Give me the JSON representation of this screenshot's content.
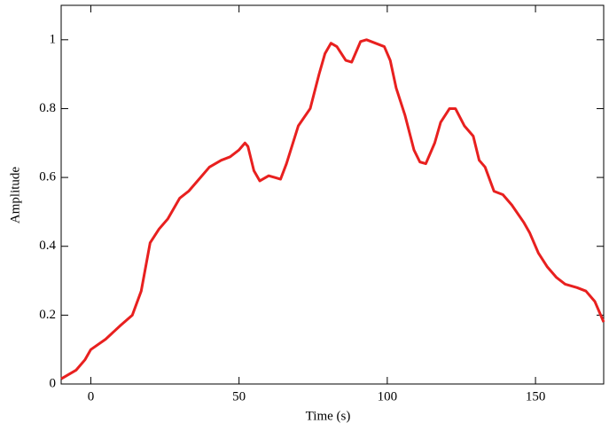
{
  "chart_data": {
    "type": "line",
    "xlabel": "Time (s)",
    "ylabel": "Amplitude",
    "xlim": [
      -10,
      173
    ],
    "ylim": [
      0,
      1.1
    ],
    "xticks": [
      0,
      50,
      100,
      150
    ],
    "yticks": [
      0,
      0.2,
      0.4,
      0.6,
      0.8,
      1
    ],
    "grid": false,
    "series": [
      {
        "color": "#e8201f",
        "x": [
          -10,
          -5,
          -2,
          0,
          5,
          10,
          14,
          17,
          20,
          23,
          26,
          30,
          33,
          37,
          40,
          44,
          47,
          50,
          52,
          53,
          55,
          57,
          60,
          62,
          64,
          66,
          70,
          74,
          77,
          79,
          81,
          83,
          86,
          88,
          91,
          93,
          96,
          99,
          101,
          103,
          106,
          109,
          111,
          113,
          116,
          118,
          121,
          123,
          126,
          129,
          131,
          133,
          136,
          139,
          142,
          146,
          148,
          151,
          154,
          157,
          160,
          164,
          167,
          170,
          173
        ],
        "values": [
          0.015,
          0.04,
          0.07,
          0.1,
          0.13,
          0.17,
          0.2,
          0.27,
          0.41,
          0.45,
          0.48,
          0.54,
          0.56,
          0.6,
          0.63,
          0.65,
          0.66,
          0.68,
          0.7,
          0.69,
          0.62,
          0.59,
          0.605,
          0.6,
          0.595,
          0.64,
          0.75,
          0.8,
          0.9,
          0.96,
          0.99,
          0.98,
          0.94,
          0.935,
          0.995,
          1.0,
          0.99,
          0.98,
          0.94,
          0.86,
          0.78,
          0.68,
          0.645,
          0.64,
          0.7,
          0.76,
          0.8,
          0.8,
          0.75,
          0.72,
          0.65,
          0.63,
          0.56,
          0.55,
          0.52,
          0.47,
          0.44,
          0.38,
          0.34,
          0.31,
          0.29,
          0.28,
          0.27,
          0.24,
          0.18
        ]
      }
    ]
  }
}
